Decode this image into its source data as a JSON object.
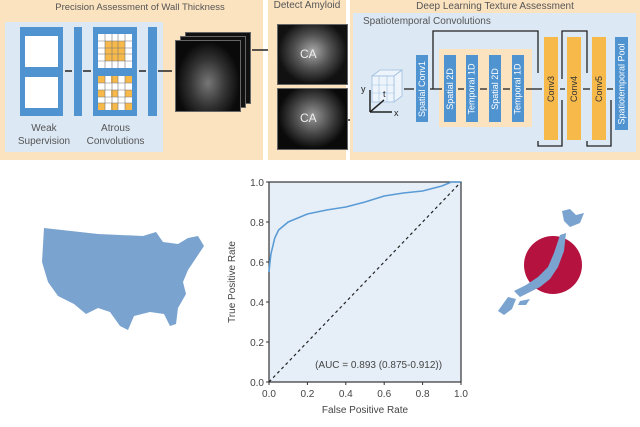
{
  "left_panel": {
    "title": "Precision Assessment of Wall Thickness",
    "label_1": "Weak Supervision",
    "label_2": "Atrous Convolutions"
  },
  "middle_panel": {
    "title": "Detect Amyloid",
    "image_label_top": "CA",
    "image_label_bottom": "CA"
  },
  "right_panel": {
    "title": "Deep Learning Texture Assessment",
    "subtitle": "Spatiotemporal Convolutions",
    "axes": {
      "y": "y",
      "t": "t",
      "x": "x"
    },
    "layers": [
      "Spatial Conv1",
      "Spatial 2D",
      "Temporal 1D",
      "Spatial 2D",
      "Temporal 1D",
      "Conv3",
      "Conv4",
      "Conv5",
      "Spatiotemporal Pool"
    ]
  },
  "colors": {
    "panel": "#fbe3c0",
    "inner": "#dce8f4",
    "blue": "#4f93d0",
    "orange": "#f6b94a",
    "japan_sun": "#b5123f",
    "map": "#7aa3cf"
  },
  "chart_data": {
    "type": "line",
    "xlabel": "False Positive Rate",
    "ylabel": "True Positive Rate",
    "xlim": [
      0,
      1
    ],
    "ylim": [
      0,
      1
    ],
    "xticks": [
      "0.0",
      "0.2",
      "0.4",
      "0.6",
      "0.8",
      "1.0"
    ],
    "yticks": [
      "0.0",
      "0.2",
      "0.4",
      "0.6",
      "0.8",
      "1.0"
    ],
    "annotation": "(AUC = 0.893 (0.875-0.912))",
    "series": [
      {
        "x": [
          0,
          0.005,
          0.01,
          0.02,
          0.03,
          0.05,
          0.1,
          0.15,
          0.2,
          0.3,
          0.4,
          0.5,
          0.6,
          0.7,
          0.8,
          0.9,
          0.95,
          1
        ],
        "y": [
          0.55,
          0.6,
          0.64,
          0.68,
          0.72,
          0.76,
          0.8,
          0.82,
          0.84,
          0.86,
          0.875,
          0.9,
          0.93,
          0.945,
          0.955,
          0.98,
          1,
          1
        ]
      }
    ],
    "reference_line": {
      "x": [
        0,
        1
      ],
      "y": [
        0,
        1
      ],
      "style": "dashed"
    }
  }
}
